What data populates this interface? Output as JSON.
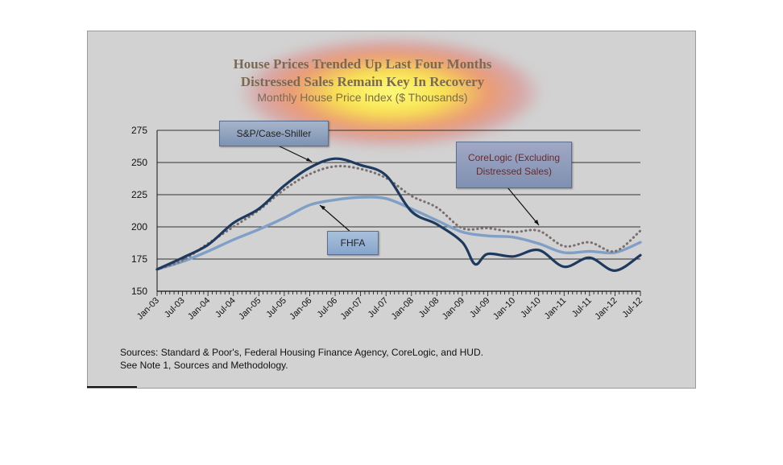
{
  "chart_data": {
    "type": "line",
    "title": "House Prices Trended Up Last Four Months",
    "title2": "Distressed Sales Remain Key In Recovery",
    "subtitle": "Monthly House Price Index ($ Thousands)",
    "ylim": [
      150,
      275
    ],
    "yticks": [
      150,
      175,
      200,
      225,
      250,
      275
    ],
    "xlim": [
      "Jan-03",
      "Jul-12"
    ],
    "xtick_labels": [
      "Jan-03",
      "Jul-03",
      "Jan-04",
      "Jul-04",
      "Jan-05",
      "Jul-05",
      "Jan-06",
      "Jul-06",
      "Jan-07",
      "Jul-07",
      "Jan-08",
      "Jul-08",
      "Jan-09",
      "Jul-09",
      "Jan-10",
      "Jul-10",
      "Jan-11",
      "Jul-11",
      "Jan-12",
      "Jul-12"
    ],
    "grid": "horizontal",
    "series": [
      {
        "name": "S&P/Case-Shiller",
        "color": "#1f3a5f",
        "style": "solid",
        "points": [
          [
            "2003-01",
            167
          ],
          [
            "2003-07",
            176
          ],
          [
            "2004-01",
            186
          ],
          [
            "2004-07",
            203
          ],
          [
            "2005-01",
            214
          ],
          [
            "2005-07",
            232
          ],
          [
            "2006-01",
            246
          ],
          [
            "2006-07",
            253
          ],
          [
            "2007-01",
            248
          ],
          [
            "2007-07",
            240
          ],
          [
            "2008-01",
            212
          ],
          [
            "2008-07",
            202
          ],
          [
            "2009-01",
            188
          ],
          [
            "2009-04",
            171
          ],
          [
            "2009-07",
            179
          ],
          [
            "2010-01",
            177
          ],
          [
            "2010-07",
            182
          ],
          [
            "2011-01",
            169
          ],
          [
            "2011-07",
            176
          ],
          [
            "2012-01",
            166
          ],
          [
            "2012-07",
            178
          ]
        ]
      },
      {
        "name": "FHFA",
        "color": "#7f9fc6",
        "style": "solid",
        "points": [
          [
            "2003-01",
            167
          ],
          [
            "2003-07",
            173
          ],
          [
            "2004-01",
            181
          ],
          [
            "2004-07",
            190
          ],
          [
            "2005-01",
            198
          ],
          [
            "2005-07",
            207
          ],
          [
            "2006-01",
            217
          ],
          [
            "2006-07",
            221
          ],
          [
            "2007-01",
            223
          ],
          [
            "2007-07",
            222
          ],
          [
            "2008-01",
            214
          ],
          [
            "2008-07",
            205
          ],
          [
            "2009-01",
            196
          ],
          [
            "2009-07",
            193
          ],
          [
            "2010-01",
            192
          ],
          [
            "2010-07",
            187
          ],
          [
            "2011-01",
            180
          ],
          [
            "2011-07",
            181
          ],
          [
            "2012-01",
            180
          ],
          [
            "2012-07",
            188
          ]
        ]
      },
      {
        "name": "CoreLogic (Excluding Distressed Sales)",
        "color": "#7a6e6e",
        "style": "dotted",
        "points": [
          [
            "2003-01",
            167
          ],
          [
            "2003-07",
            174
          ],
          [
            "2004-01",
            187
          ],
          [
            "2004-07",
            200
          ],
          [
            "2005-01",
            213
          ],
          [
            "2005-07",
            229
          ],
          [
            "2006-01",
            241
          ],
          [
            "2006-07",
            247
          ],
          [
            "2007-01",
            245
          ],
          [
            "2007-07",
            238
          ],
          [
            "2008-01",
            224
          ],
          [
            "2008-07",
            215
          ],
          [
            "2009-01",
            199
          ],
          [
            "2009-07",
            199
          ],
          [
            "2010-01",
            196
          ],
          [
            "2010-07",
            197
          ],
          [
            "2011-01",
            185
          ],
          [
            "2011-07",
            188
          ],
          [
            "2012-01",
            181
          ],
          [
            "2012-07",
            197
          ]
        ]
      }
    ]
  },
  "callouts": {
    "sp": "S&P/Case-Shiller",
    "core_line1": "CoreLogic (Excluding",
    "core_line2": "Distressed Sales)",
    "fhfa": "FHFA"
  },
  "sources": {
    "line1": "Sources:  Standard & Poor's, Federal Housing Finance Agency, CoreLogic, and HUD.",
    "line2": "See Note 1, Sources and Methodology."
  }
}
